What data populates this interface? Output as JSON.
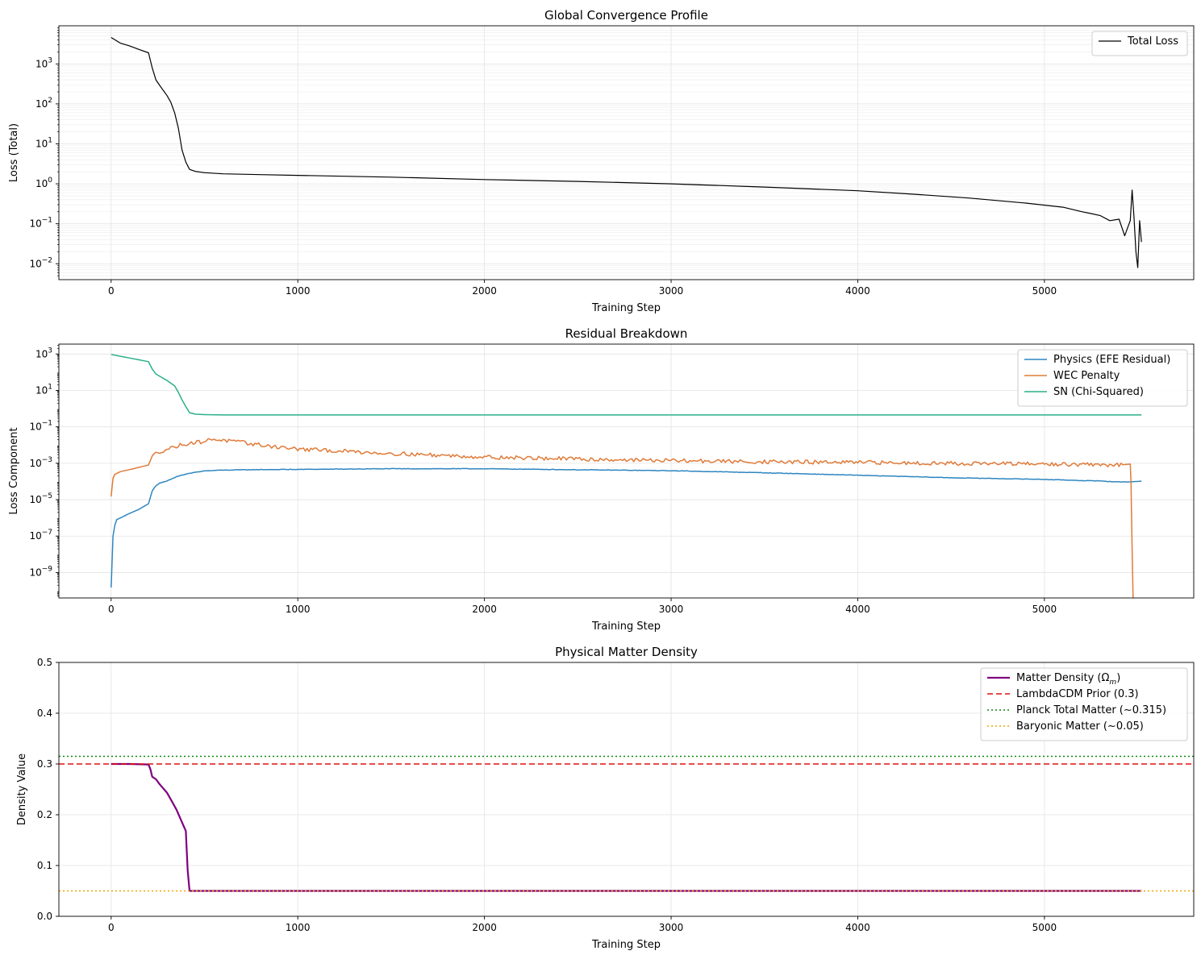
{
  "chart_data": [
    {
      "type": "line",
      "title": "Global Convergence Profile",
      "xlabel": "Training Step",
      "ylabel": "Loss (Total)",
      "xlim": [
        -280,
        5800
      ],
      "ylim": [
        0.004,
        9000
      ],
      "yscale": "log",
      "grid": true,
      "grid_minor": true,
      "legend_position": "top-right",
      "xticks": [
        {
          "v": 0,
          "label": "0"
        },
        {
          "v": 1000,
          "label": "1000"
        },
        {
          "v": 2000,
          "label": "2000"
        },
        {
          "v": 3000,
          "label": "3000"
        },
        {
          "v": 4000,
          "label": "4000"
        },
        {
          "v": 5000,
          "label": "5000"
        }
      ],
      "yticks": [
        {
          "v": 0.01,
          "base": "10",
          "exp": "−2"
        },
        {
          "v": 0.1,
          "base": "10",
          "exp": "−1"
        },
        {
          "v": 1,
          "base": "10",
          "exp": "0"
        },
        {
          "v": 10,
          "base": "10",
          "exp": "1"
        },
        {
          "v": 100,
          "base": "10",
          "exp": "2"
        },
        {
          "v": 1000,
          "base": "10",
          "exp": "3"
        }
      ],
      "series": [
        {
          "name": "Total Loss",
          "color": "#000000",
          "width": 1.2,
          "dash": "",
          "noise": 0,
          "x": [
            0,
            50,
            100,
            150,
            200,
            220,
            240,
            260,
            300,
            320,
            340,
            360,
            380,
            400,
            420,
            450,
            500,
            600,
            800,
            1000,
            1500,
            2000,
            2500,
            3000,
            3500,
            4000,
            4300,
            4600,
            4900,
            5100,
            5200,
            5250,
            5300,
            5350,
            5400,
            5430,
            5450,
            5460,
            5470,
            5480,
            5490,
            5500,
            5510,
            5520
          ],
          "y": [
            4600,
            3300,
            2800,
            2300,
            1900,
            800,
            400,
            290,
            160,
            110,
            60,
            25,
            7,
            3.5,
            2.3,
            2.05,
            1.9,
            1.78,
            1.7,
            1.63,
            1.47,
            1.28,
            1.15,
            1.0,
            0.83,
            0.67,
            0.55,
            0.44,
            0.33,
            0.26,
            0.2,
            0.18,
            0.16,
            0.12,
            0.13,
            0.05,
            0.09,
            0.12,
            0.7,
            0.15,
            0.02,
            0.008,
            0.12,
            0.035
          ]
        }
      ]
    },
    {
      "type": "line",
      "title": "Residual Breakdown",
      "xlabel": "Training Step",
      "ylabel": "Loss Component",
      "xlim": [
        -280,
        5800
      ],
      "ylim": [
        4e-11,
        3500
      ],
      "yscale": "log",
      "grid": true,
      "grid_minor": false,
      "legend_position": "top-right",
      "xticks": [
        {
          "v": 0,
          "label": "0"
        },
        {
          "v": 1000,
          "label": "1000"
        },
        {
          "v": 2000,
          "label": "2000"
        },
        {
          "v": 3000,
          "label": "3000"
        },
        {
          "v": 4000,
          "label": "4000"
        },
        {
          "v": 5000,
          "label": "5000"
        }
      ],
      "yticks": [
        {
          "v": 1e-09,
          "base": "10",
          "exp": "−9"
        },
        {
          "v": 1e-07,
          "base": "10",
          "exp": "−7"
        },
        {
          "v": 1e-05,
          "base": "10",
          "exp": "−5"
        },
        {
          "v": 0.001,
          "base": "10",
          "exp": "−3"
        },
        {
          "v": 0.1,
          "base": "10",
          "exp": "−1"
        },
        {
          "v": 10,
          "base": "10",
          "exp": "1"
        },
        {
          "v": 1000,
          "base": "10",
          "exp": "3"
        }
      ],
      "series": [
        {
          "name": "Physics (EFE Residual)",
          "color": "#2e86c1",
          "width": 1.5,
          "dash": "",
          "noise": 0.03,
          "x": [
            0,
            5,
            10,
            20,
            30,
            50,
            100,
            150,
            200,
            220,
            240,
            260,
            300,
            350,
            400,
            450,
            500,
            600,
            800,
            1000,
            1500,
            2000,
            2500,
            3000,
            3500,
            4000,
            4500,
            5000,
            5300,
            5400,
            5450,
            5500,
            5520
          ],
          "y": [
            1.5e-10,
            1e-08,
            1e-07,
            4e-07,
            8e-07,
            1e-06,
            1.8e-06,
            3e-06,
            6e-06,
            3e-05,
            6e-05,
            8e-05,
            0.00011,
            0.00018,
            0.00025,
            0.00032,
            0.00038,
            0.00042,
            0.00045,
            0.00046,
            0.0005,
            0.0005,
            0.00044,
            0.00039,
            0.0003,
            0.00022,
            0.00016,
            0.00013,
            0.000105,
            9.5e-05,
            9.5e-05,
            0.0001,
            0.000105
          ]
        },
        {
          "name": "WEC Penalty",
          "color": "#e07b39",
          "width": 1.5,
          "dash": "",
          "noise": 0.25,
          "x": [
            0,
            10,
            20,
            50,
            100,
            150,
            200,
            220,
            250,
            300,
            400,
            500,
            550,
            600,
            700,
            800,
            1000,
            1500,
            2000,
            2500,
            3000,
            3500,
            4000,
            4500,
            5000,
            5200,
            5300,
            5400,
            5460,
            5464,
            5470,
            5475
          ],
          "y": [
            1.5e-05,
            0.00015,
            0.00025,
            0.00035,
            0.00045,
            0.0006,
            0.0008,
            0.0025,
            0.004,
            0.006,
            0.012,
            0.016,
            0.022,
            0.018,
            0.014,
            0.01,
            0.006,
            0.0035,
            0.0022,
            0.0017,
            0.0014,
            0.0012,
            0.0011,
            0.001,
            0.0009,
            0.00085,
            0.0008,
            0.0008,
            0.0009,
            0.0001,
            2e-08,
            4e-11
          ]
        },
        {
          "name": "SN (Chi-Squared)",
          "color": "#2ab08a",
          "width": 1.5,
          "dash": "",
          "noise": 0,
          "x": [
            0,
            50,
            100,
            150,
            200,
            220,
            240,
            260,
            300,
            340,
            360,
            380,
            400,
            420,
            450,
            500,
            600,
            1000,
            2000,
            3000,
            4000,
            5000,
            5520
          ],
          "y": [
            950,
            750,
            600,
            480,
            380,
            150,
            80,
            60,
            35,
            18,
            8,
            3,
            1.3,
            0.6,
            0.5,
            0.47,
            0.45,
            0.45,
            0.45,
            0.45,
            0.45,
            0.45,
            0.45
          ]
        }
      ]
    },
    {
      "type": "line",
      "title": "Physical Matter Density",
      "xlabel": "Training Step",
      "ylabel": "Density Value",
      "xlim": [
        -280,
        5800
      ],
      "ylim": [
        0.0,
        0.5
      ],
      "yscale": "linear",
      "grid": true,
      "grid_minor": false,
      "legend_position": "top-right",
      "xticks": [
        {
          "v": 0,
          "label": "0"
        },
        {
          "v": 1000,
          "label": "1000"
        },
        {
          "v": 2000,
          "label": "2000"
        },
        {
          "v": 3000,
          "label": "3000"
        },
        {
          "v": 4000,
          "label": "4000"
        },
        {
          "v": 5000,
          "label": "5000"
        }
      ],
      "yticks": [
        {
          "v": 0.0,
          "label": "0.0"
        },
        {
          "v": 0.1,
          "label": "0.1"
        },
        {
          "v": 0.2,
          "label": "0.2"
        },
        {
          "v": 0.3,
          "label": "0.3"
        },
        {
          "v": 0.4,
          "label": "0.4"
        },
        {
          "v": 0.5,
          "label": "0.5"
        }
      ],
      "series": [
        {
          "name": "Matter Density (Ω",
          "name_sub": "m",
          "name_suffix": ")",
          "color": "#800080",
          "width": 2.2,
          "dash": "",
          "noise": 0,
          "x": [
            0,
            100,
            200,
            210,
            220,
            240,
            260,
            300,
            320,
            350,
            380,
            400,
            405,
            410,
            420,
            430,
            5520
          ],
          "y": [
            0.3,
            0.3,
            0.299,
            0.29,
            0.275,
            0.27,
            0.26,
            0.243,
            0.23,
            0.21,
            0.185,
            0.168,
            0.13,
            0.09,
            0.05,
            0.05,
            0.05
          ]
        },
        {
          "name": "LambdaCDM Prior (0.3)",
          "color": "#e01010",
          "width": 1.6,
          "dash": "7,4",
          "noise": 0,
          "x": [
            -280,
            5800
          ],
          "y": [
            0.3,
            0.3
          ]
        },
        {
          "name": "Planck Total Matter (~0.315)",
          "color": "#118811",
          "width": 1.6,
          "dash": "2,3",
          "noise": 0,
          "x": [
            -280,
            5800
          ],
          "y": [
            0.315,
            0.315
          ]
        },
        {
          "name": "Baryonic Matter (~0.05)",
          "color": "#f0a500",
          "width": 1.6,
          "dash": "2,3",
          "noise": 0,
          "x": [
            -280,
            5800
          ],
          "y": [
            0.05,
            0.05
          ]
        }
      ]
    }
  ]
}
